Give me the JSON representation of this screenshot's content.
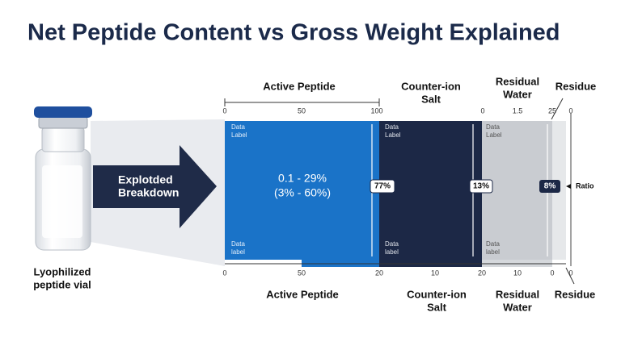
{
  "title": "Net Peptide Content vs Gross Weight Explained",
  "vial_label": [
    "Lyophilized",
    "peptide vial"
  ],
  "arrow_label": [
    "Explotded",
    "Breakdown"
  ],
  "top_headers": [
    [
      "Active Peptide"
    ],
    [
      "Counter-ion",
      "Salt"
    ],
    [
      "Residual",
      "Water"
    ],
    [
      "Residue"
    ]
  ],
  "top_scale": [
    "0",
    "50",
    "100",
    "0",
    "1.5",
    "25",
    "0"
  ],
  "bottom_scale": [
    "0",
    "50",
    "20",
    "10",
    "20",
    "10",
    "0",
    "0"
  ],
  "segment_labels_top": [
    [
      "Data",
      "Label"
    ],
    [
      "Data",
      "Label"
    ],
    [
      "Data",
      "Label"
    ]
  ],
  "segment_labels_bottom": [
    [
      "Data",
      "label"
    ],
    [
      "Data",
      "label"
    ],
    [
      "Data",
      "label"
    ]
  ],
  "center_text": [
    "0.1 - 29%",
    "(3% - 60%)"
  ],
  "badges": [
    "77%",
    "13%",
    "8%"
  ],
  "ratio_label": "Ratio",
  "bottom_headers": [
    [
      "Active Peptide"
    ],
    [
      "Counter-ion",
      "Salt"
    ],
    [
      "Residual",
      "Water"
    ],
    [
      "Residue"
    ]
  ]
}
